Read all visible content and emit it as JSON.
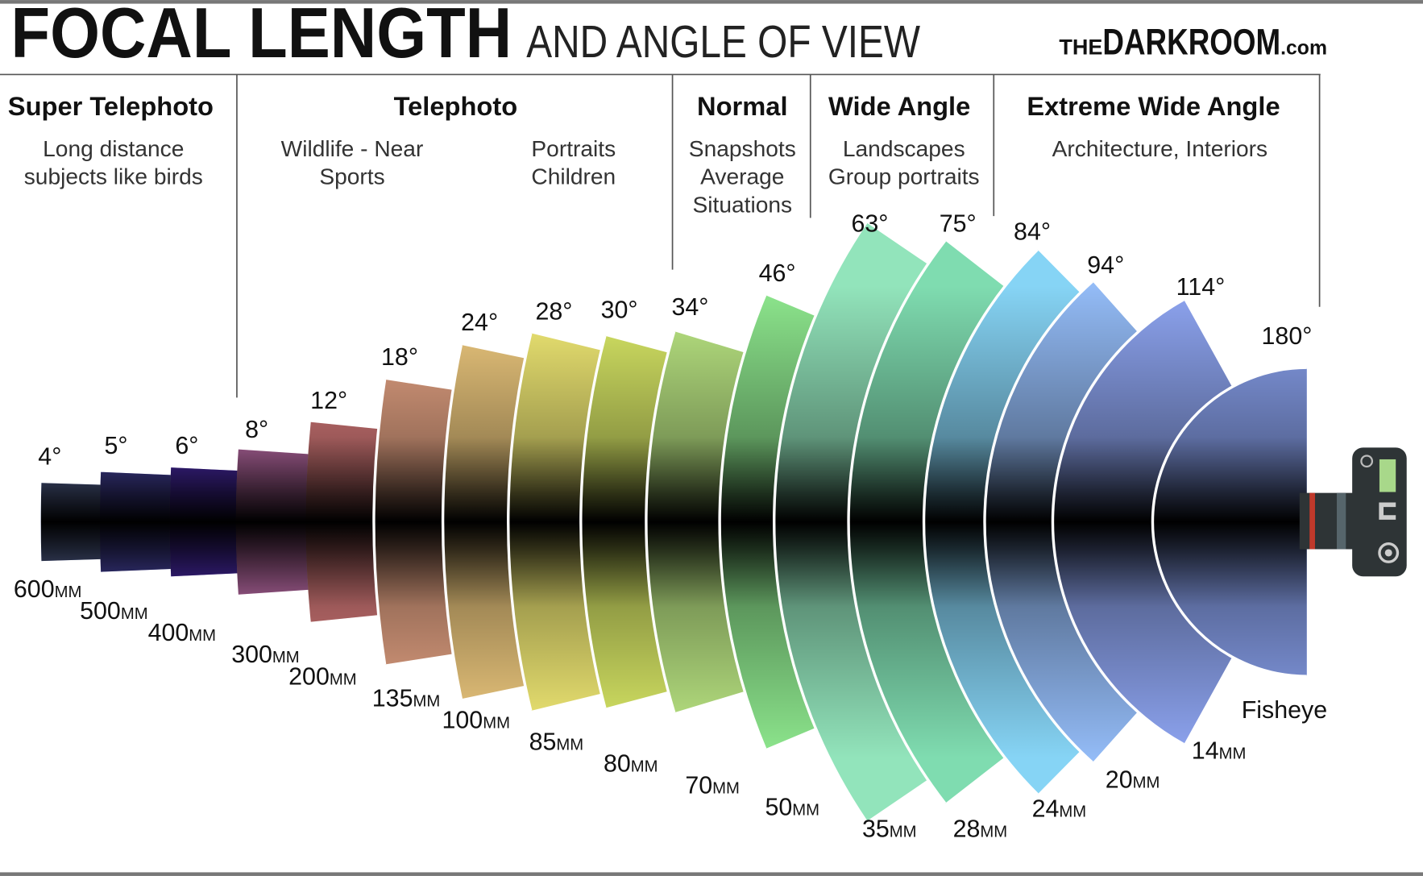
{
  "header": {
    "title": "FOCAL LENGTH",
    "subtitle": "AND ANGLE OF VIEW",
    "brand": {
      "prefix": "THE",
      "name": "DARKROOM",
      "suffix": ".com"
    }
  },
  "categories": [
    {
      "name": "Super Telephoto",
      "groups": [
        [
          "Long distance",
          "subjects like birds"
        ]
      ]
    },
    {
      "name": "Telephoto",
      "groups": [
        [
          "Wildlife - Near",
          "Sports"
        ],
        [
          "Portraits",
          "Children"
        ]
      ]
    },
    {
      "name": "Normal",
      "groups": [
        [
          "Snapshots",
          "Average",
          "Situations"
        ]
      ]
    },
    {
      "name": "Wide Angle",
      "groups": [
        [
          "Landscapes",
          "Group portraits"
        ]
      ]
    },
    {
      "name": "Extreme Wide Angle",
      "groups": [
        [
          "Architecture, Interiors"
        ]
      ]
    }
  ],
  "lenses": [
    {
      "angle": "4°",
      "focal": "600",
      "unit": "MM"
    },
    {
      "angle": "5°",
      "focal": "500",
      "unit": "MM"
    },
    {
      "angle": "6°",
      "focal": "400",
      "unit": "MM"
    },
    {
      "angle": "8°",
      "focal": "300",
      "unit": "MM"
    },
    {
      "angle": "12°",
      "focal": "200",
      "unit": "MM"
    },
    {
      "angle": "18°",
      "focal": "135",
      "unit": "MM"
    },
    {
      "angle": "24°",
      "focal": "100",
      "unit": "MM"
    },
    {
      "angle": "28°",
      "focal": "85",
      "unit": "MM"
    },
    {
      "angle": "30°",
      "focal": "80",
      "unit": "MM"
    },
    {
      "angle": "34°",
      "focal": "70",
      "unit": "MM"
    },
    {
      "angle": "46°",
      "focal": "50",
      "unit": "MM"
    },
    {
      "angle": "63°",
      "focal": "35",
      "unit": "MM"
    },
    {
      "angle": "75°",
      "focal": "28",
      "unit": "MM"
    },
    {
      "angle": "84°",
      "focal": "24",
      "unit": "MM"
    },
    {
      "angle": "94°",
      "focal": "20",
      "unit": "MM"
    },
    {
      "angle": "114°",
      "focal": "14",
      "unit": "MM"
    },
    {
      "angle": "180°",
      "focal": "Fisheye"
    }
  ]
}
